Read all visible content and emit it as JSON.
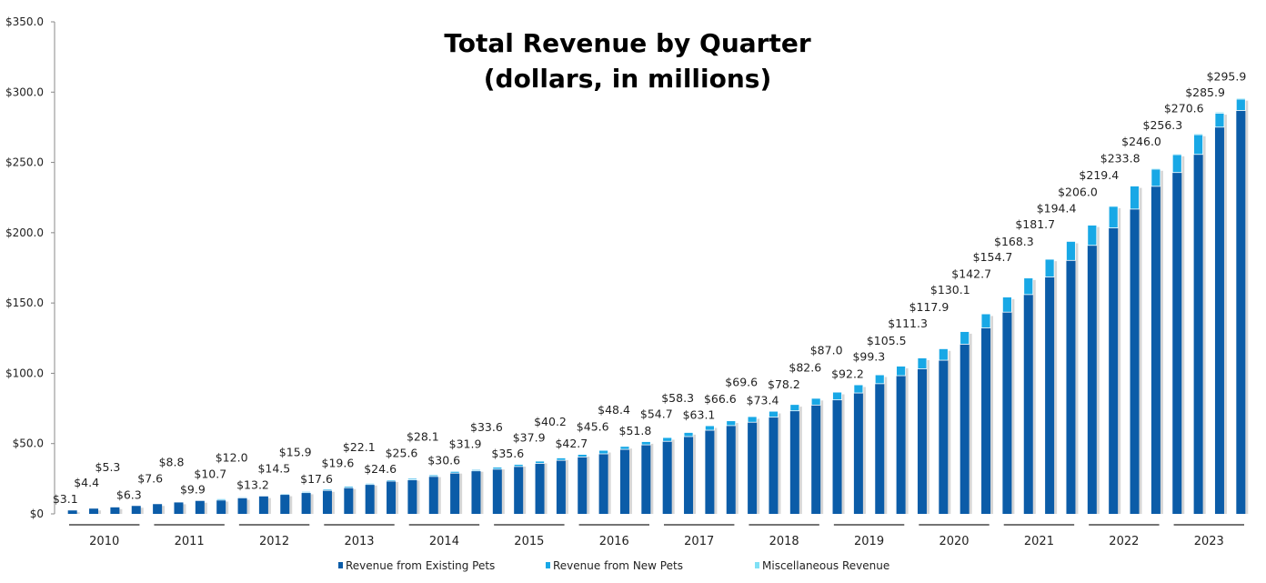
{
  "chart_data": {
    "type": "bar",
    "stacked": true,
    "title_lines": [
      "Total Revenue by Quarter",
      "(dollars, in millions)"
    ],
    "xlabel": "",
    "ylabel": "",
    "ylim": [
      0,
      350
    ],
    "y_ticks": [
      "$0",
      "$50.0",
      "$100.0",
      "$150.0",
      "$200.0",
      "$250.0",
      "$300.0",
      "$350.0"
    ],
    "grid": false,
    "legend_position": "bottom",
    "years": [
      "2010",
      "2011",
      "2012",
      "2013",
      "2014",
      "2015",
      "2016",
      "2017",
      "2018",
      "2019",
      "2020",
      "2021",
      "2022",
      "2023"
    ],
    "quarters_per_year": 4,
    "totals": [
      3.1,
      4.4,
      5.3,
      6.3,
      7.6,
      8.8,
      9.9,
      10.7,
      12.0,
      13.2,
      14.5,
      15.9,
      17.6,
      19.6,
      22.1,
      24.6,
      25.6,
      28.1,
      30.6,
      31.9,
      33.6,
      35.6,
      37.9,
      40.2,
      42.7,
      45.6,
      48.4,
      51.8,
      54.7,
      58.3,
      63.1,
      66.6,
      69.6,
      73.4,
      78.2,
      82.6,
      87.0,
      92.2,
      99.3,
      105.5,
      111.3,
      117.9,
      130.1,
      142.7,
      154.7,
      168.3,
      181.7,
      194.4,
      206.0,
      219.4,
      233.8,
      246.0,
      256.3,
      270.6,
      285.9,
      295.9
    ],
    "series": [
      {
        "name": "Revenue from Existing Pets",
        "color": "#0B5CA8",
        "values": [
          3.0,
          4.2,
          5.1,
          6.0,
          7.3,
          8.4,
          9.5,
          9.8,
          11.4,
          12.7,
          13.8,
          15.1,
          16.7,
          18.6,
          20.9,
          23.3,
          24.2,
          26.6,
          29.0,
          30.6,
          31.8,
          33.7,
          35.9,
          38.1,
          40.5,
          42.7,
          45.9,
          49.1,
          51.6,
          55.0,
          59.5,
          62.8,
          65.2,
          68.8,
          73.3,
          77.4,
          81.1,
          86.0,
          92.6,
          98.3,
          103.2,
          109.3,
          120.7,
          132.3,
          143.5,
          156.0,
          168.5,
          180.3,
          191.0,
          203.4,
          216.8,
          233.0,
          242.8,
          255.7,
          275.1,
          286.9
        ]
      },
      {
        "name": "Revenue from New Pets",
        "color": "#18A8E6",
        "values": [
          0.1,
          0.2,
          0.2,
          0.3,
          0.3,
          0.4,
          0.4,
          0.9,
          0.6,
          0.5,
          0.7,
          0.8,
          0.9,
          1.0,
          1.1,
          1.2,
          1.3,
          1.4,
          1.5,
          1.2,
          1.7,
          1.8,
          1.9,
          2.0,
          2.1,
          2.8,
          2.4,
          2.6,
          3.0,
          3.2,
          3.5,
          3.7,
          4.2,
          4.4,
          4.7,
          5.0,
          5.7,
          6.0,
          6.5,
          6.9,
          7.8,
          8.3,
          9.1,
          10.0,
          10.8,
          11.8,
          12.7,
          13.6,
          14.4,
          15.4,
          16.4,
          12.3,
          12.8,
          14.1,
          10.0,
          8.2
        ]
      },
      {
        "name": "Miscellaneous Revenue",
        "color": "#7FE0F5",
        "values": [
          0,
          0,
          0,
          0,
          0,
          0,
          0,
          0,
          0,
          0,
          0,
          0,
          0,
          0,
          0.1,
          0.1,
          0.1,
          0.1,
          0.1,
          0.1,
          0.1,
          0.1,
          0.1,
          0.1,
          0.1,
          0.1,
          0.1,
          0.1,
          0.1,
          0.1,
          0.1,
          0.1,
          0.2,
          0.2,
          0.2,
          0.2,
          0.2,
          0.2,
          0.2,
          0.3,
          0.3,
          0.3,
          0.3,
          0.4,
          0.4,
          0.5,
          0.5,
          0.5,
          0.6,
          0.6,
          0.6,
          0.7,
          0.7,
          0.8,
          0.8,
          0.8
        ]
      }
    ]
  }
}
